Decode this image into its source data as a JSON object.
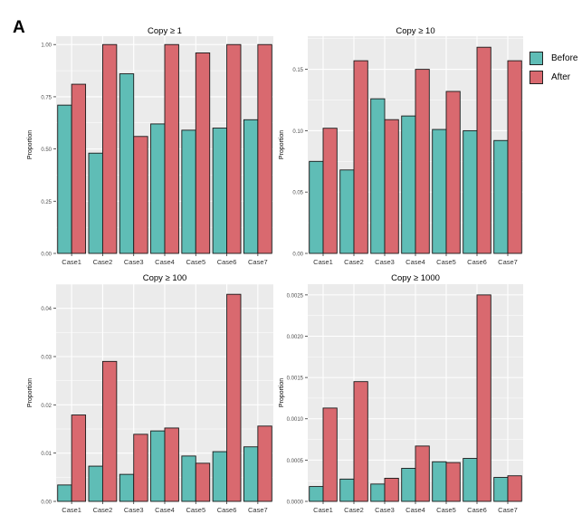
{
  "panel_label": "A",
  "colors": {
    "before": "#5fbdb6",
    "after": "#d9696f",
    "panel_bg": "#ebebeb",
    "grid": "#ffffff"
  },
  "legend": {
    "placement": "right",
    "items": [
      {
        "key": "before",
        "label": "Before"
      },
      {
        "key": "after",
        "label": "After"
      }
    ]
  },
  "chart_data": [
    {
      "type": "bar",
      "title": "Copy ≥ 1",
      "ylabel": "Proportion",
      "categories": [
        "Case1",
        "Case2",
        "Case3",
        "Case4",
        "Case5",
        "Case6",
        "Case7"
      ],
      "ylim": [
        0,
        1.04
      ],
      "yticks": [
        "0.00",
        "0.25",
        "0.50",
        "0.75",
        "1.00"
      ],
      "yticks_values": [
        0,
        0.25,
        0.5,
        0.75,
        1.0
      ],
      "series": [
        {
          "name": "Before",
          "values": [
            0.71,
            0.48,
            0.86,
            0.62,
            0.59,
            0.6,
            0.64
          ]
        },
        {
          "name": "After",
          "values": [
            0.81,
            1.0,
            0.56,
            1.0,
            0.96,
            1.0,
            1.0
          ]
        }
      ]
    },
    {
      "type": "bar",
      "title": "Copy ≥ 10",
      "ylabel": "Proportion",
      "categories": [
        "Case1",
        "Case2",
        "Case3",
        "Case4",
        "Case5",
        "Case6",
        "Case7"
      ],
      "ylim": [
        0,
        0.177
      ],
      "yticks": [
        "0.00",
        "0.05",
        "0.10",
        "0.15"
      ],
      "yticks_values": [
        0,
        0.05,
        0.1,
        0.15
      ],
      "series": [
        {
          "name": "Before",
          "values": [
            0.075,
            0.068,
            0.126,
            0.112,
            0.101,
            0.1,
            0.092
          ]
        },
        {
          "name": "After",
          "values": [
            0.102,
            0.157,
            0.109,
            0.15,
            0.132,
            0.168,
            0.157
          ]
        }
      ]
    },
    {
      "type": "bar",
      "title": "Copy ≥ 100",
      "ylabel": "Proportion",
      "categories": [
        "Case1",
        "Case2",
        "Case3",
        "Case4",
        "Case5",
        "Case6",
        "Case7"
      ],
      "ylim": [
        0,
        0.045
      ],
      "yticks": [
        "0.00",
        "0.01",
        "0.02",
        "0.03",
        "0.04"
      ],
      "yticks_values": [
        0,
        0.01,
        0.02,
        0.03,
        0.04
      ],
      "series": [
        {
          "name": "Before",
          "values": [
            0.0034,
            0.0073,
            0.0056,
            0.0146,
            0.0094,
            0.0103,
            0.0113
          ]
        },
        {
          "name": "After",
          "values": [
            0.0179,
            0.029,
            0.0139,
            0.0152,
            0.0079,
            0.0429,
            0.0156
          ]
        }
      ]
    },
    {
      "type": "bar",
      "title": "Copy ≥ 1000",
      "ylabel": "Proportion",
      "categories": [
        "Case1",
        "Case2",
        "Case3",
        "Case4",
        "Case5",
        "Case6",
        "Case7"
      ],
      "ylim": [
        0,
        0.00263
      ],
      "yticks": [
        "0.0000",
        "0.0005",
        "0.0010",
        "0.0015",
        "0.0020",
        "0.0025"
      ],
      "yticks_values": [
        0,
        0.0005,
        0.001,
        0.0015,
        0.002,
        0.0025
      ],
      "series": [
        {
          "name": "Before",
          "values": [
            0.00018,
            0.00027,
            0.00021,
            0.0004,
            0.00048,
            0.00052,
            0.00029
          ]
        },
        {
          "name": "After",
          "values": [
            0.00113,
            0.00145,
            0.00028,
            0.00067,
            0.00047,
            0.0025,
            0.00031
          ]
        }
      ]
    }
  ]
}
